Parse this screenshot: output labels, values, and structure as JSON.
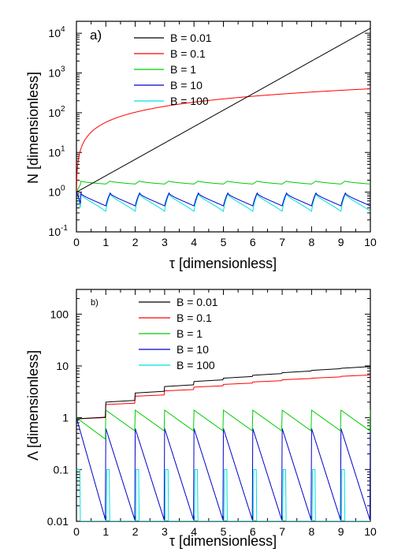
{
  "chart_data": [
    {
      "type": "line",
      "panel_label": "a)",
      "xlabel": "τ [dimensionless]",
      "ylabel": "N [dimensionless]",
      "xscale": "linear",
      "yscale": "log",
      "xlim": [
        0,
        10
      ],
      "ylim": [
        0.1,
        20000
      ],
      "x_ticks": [
        0,
        1,
        2,
        3,
        4,
        5,
        6,
        7,
        8,
        9,
        10
      ],
      "x_tick_labels": [
        "0",
        "1",
        "2",
        "3",
        "4",
        "5",
        "6",
        "7",
        "8",
        "9",
        "10"
      ],
      "y_ticks": [
        0.1,
        1,
        10,
        100,
        1000,
        10000
      ],
      "y_tick_labels": [
        {
          "base": "10",
          "exp": "-1"
        },
        {
          "base": "10",
          "exp": "0"
        },
        {
          "base": "10",
          "exp": "1"
        },
        {
          "base": "10",
          "exp": "2"
        },
        {
          "base": "10",
          "exp": "3"
        },
        {
          "base": "10",
          "exp": "4"
        }
      ],
      "legend_position": "top-center",
      "series": [
        {
          "name": "B = 0.01",
          "color": "#000000",
          "model": "exp",
          "start": 1.0,
          "rate": 0.95
        },
        {
          "name": "B = 0.1",
          "color": "#ff0000",
          "model": "power",
          "start": 1.0,
          "end": 400,
          "exponent": 0.85
        },
        {
          "name": "B = 1",
          "color": "#00cc00",
          "model": "sawtooth",
          "peak": 1.9,
          "trough": 1.6,
          "start": 1.0
        },
        {
          "name": "B = 10",
          "color": "#0000cc",
          "model": "sawtooth",
          "peak": 0.95,
          "trough": 0.45,
          "start": 1.0
        },
        {
          "name": "B = 100",
          "color": "#00e0e0",
          "model": "sawtooth",
          "peak": 0.9,
          "trough": 0.33,
          "start": 1.0
        }
      ]
    },
    {
      "type": "line",
      "panel_label": "b)",
      "xlabel": "τ [dimensionless]",
      "ylabel": "Λ [dimensionless]",
      "xscale": "linear",
      "yscale": "log",
      "xlim": [
        0,
        10
      ],
      "ylim": [
        0.01,
        300
      ],
      "x_ticks": [
        0,
        1,
        2,
        3,
        4,
        5,
        6,
        7,
        8,
        9,
        10
      ],
      "x_tick_labels": [
        "0",
        "1",
        "2",
        "3",
        "4",
        "5",
        "6",
        "7",
        "8",
        "9",
        "10"
      ],
      "y_ticks": [
        0.01,
        0.1,
        1,
        10,
        100
      ],
      "y_tick_labels": [
        "0.01",
        "0.1",
        "1",
        "10",
        "100"
      ],
      "legend_position": "top-center",
      "series": [
        {
          "name": "B = 0.01",
          "color": "#000000",
          "model": "staircase",
          "levels": [
            0.95,
            2.0,
            3.0,
            4.0,
            5.0,
            5.8,
            6.6,
            7.4,
            8.2,
            9.0
          ],
          "drift": 1.08
        },
        {
          "name": "B = 0.1",
          "color": "#ff0000",
          "model": "staircase",
          "levels": [
            0.95,
            1.8,
            2.6,
            3.3,
            3.9,
            4.4,
            4.9,
            5.4,
            5.8,
            6.3
          ],
          "drift": 1.06
        },
        {
          "name": "B = 1",
          "color": "#00cc00",
          "model": "decay",
          "peak": 1.4,
          "trough": 0.55,
          "first": [
            1.0,
            0.38
          ]
        },
        {
          "name": "B = 10",
          "color": "#0000cc",
          "model": "decay",
          "peak": 0.62,
          "trough": 0.01,
          "first": [
            1.0,
            0.01
          ]
        },
        {
          "name": "B = 100",
          "color": "#00e0e0",
          "model": "pulse",
          "peak": 0.1
        }
      ]
    }
  ]
}
